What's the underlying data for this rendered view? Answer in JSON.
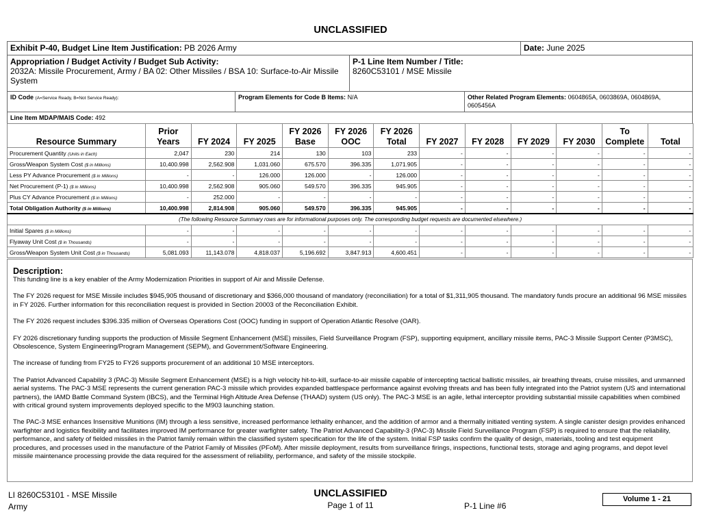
{
  "header": {
    "classification": "UNCLASSIFIED",
    "exhibit": {
      "label": "Exhibit P-40, Budget Line Item Justification:",
      "value": "PB 2026 Army"
    },
    "date": {
      "label": "Date:",
      "value": "June 2025"
    },
    "appropriation": {
      "label": "Appropriation / Budget Activity / Budget Sub Activity:",
      "value": "2032A: Missile Procurement, Army / BA 02: Other Missiles / BSA 10: Surface-to-Air Missile System"
    },
    "p1": {
      "label": "P-1 Line Item Number / Title:",
      "value": "8260C53101 / MSE Missile"
    },
    "id_code": {
      "label": "ID Code",
      "note": "(A=Service Ready, B=Not Service Ready):"
    },
    "program_elements": {
      "label": "Program Elements for Code B Items:",
      "value": "N/A"
    },
    "other_related": {
      "label": "Other Related Program Elements:",
      "value": "0604865A, 0603869A, 0604869A, 0605456A"
    },
    "mdap": {
      "label": "Line Item MDAP/MAIS Code:",
      "value": "492"
    }
  },
  "table": {
    "columns": [
      "Resource Summary",
      "Prior Years",
      "FY 2024",
      "FY 2025",
      "FY 2026 Base",
      "FY 2026 OOC",
      "FY 2026 Total",
      "FY 2027",
      "FY 2028",
      "FY 2029",
      "FY 2030",
      "To Complete",
      "Total"
    ],
    "rows": [
      {
        "label": "Procurement Quantity",
        "unit": "(Units in Each)",
        "cells": [
          "2,047",
          "230",
          "214",
          "130",
          "103",
          "233",
          "-",
          "-",
          "-",
          "-",
          "-",
          "-"
        ]
      },
      {
        "label": "Gross/Weapon System Cost",
        "unit": "($ in Millions)",
        "cells": [
          "10,400.998",
          "2,562.908",
          "1,031.060",
          "675.570",
          "396.335",
          "1,071.905",
          "-",
          "-",
          "-",
          "-",
          "-",
          "-"
        ]
      },
      {
        "label": "Less PY Advance Procurement",
        "unit": "($ in Millions)",
        "cells": [
          "-",
          "-",
          "126.000",
          "126.000",
          "-",
          "126.000",
          "-",
          "-",
          "-",
          "-",
          "-",
          "-"
        ]
      },
      {
        "label": "Net Procurement (P-1)",
        "unit": "($ in Millions)",
        "cells": [
          "10,400.998",
          "2,562.908",
          "905.060",
          "549.570",
          "396.335",
          "945.905",
          "-",
          "-",
          "-",
          "-",
          "-",
          "-"
        ]
      },
      {
        "label": "Plus CY Advance Procurement",
        "unit": "($ in Millions)",
        "cells": [
          "-",
          "252.000",
          "-",
          "-",
          "-",
          "-",
          "-",
          "-",
          "-",
          "-",
          "-",
          "-"
        ]
      },
      {
        "label": "Total Obligation Authority",
        "unit": "($ in Millions)",
        "bold": true,
        "cells": [
          "10,400.998",
          "2,814.908",
          "905.060",
          "549.570",
          "396.335",
          "945.905",
          "-",
          "-",
          "-",
          "-",
          "-",
          "-"
        ]
      }
    ],
    "note": "(The following Resource Summary rows are for informational purposes only. The corresponding budget requests are documented elsewhere.)",
    "info_rows": [
      {
        "label": "Initial Spares",
        "unit": "($ in Millions)",
        "cells": [
          "-",
          "-",
          "-",
          "-",
          "-",
          "-",
          "-",
          "-",
          "-",
          "-",
          "-",
          "-"
        ]
      },
      {
        "label": "Flyaway Unit Cost",
        "unit": "($ in Thousands)",
        "cells": [
          "-",
          "-",
          "-",
          "-",
          "-",
          "-",
          "-",
          "-",
          "-",
          "-",
          "-",
          "-"
        ]
      },
      {
        "label": "Gross/Weapon System Unit Cost",
        "unit": "($ in Thousands)",
        "cells": [
          "5,081.093",
          "11,143.078",
          "4,818.037",
          "5,196.692",
          "3,847.913",
          "4,600.451",
          "-",
          "-",
          "-",
          "-",
          "-",
          "-"
        ]
      }
    ]
  },
  "description": {
    "title": "Description:",
    "paragraphs": [
      "This funding line is a key enabler of the Army Modernization Priorities in support of Air and Missile Defense.",
      "The FY 2026 request for MSE Missile includes $945,905 thousand of discretionary and $366,000 thousand of mandatory (reconciliation) for a total of $1,311,905 thousand. The mandatory funds procure an additional 96 MSE missiles in FY 2026. Further information for this reconciliation request is provided in Section 20003 of the Reconciliation Exhibit.",
      "The FY 2026 request includes $396.335 million of Overseas Operations Cost (OOC) funding in support of Operation Atlantic Resolve (OAR).",
      "FY 2026 discretionary funding supports the production of Missile Segment Enhancement (MSE) missiles, Field Surveillance Program (FSP), supporting equipment, ancillary missile items, PAC-3 Missile Support Center (P3MSC), Obsolescence, System Engineering/Program Management (SEPM), and Government/Software Engineering.",
      "The increase of funding from FY25 to FY26 supports procurement of an additional 10 MSE interceptors.",
      "The Patriot Advanced Capability 3 (PAC-3) Missile Segment Enhancement (MSE) is a high velocity hit-to-kill, surface-to-air missile capable of intercepting tactical ballistic missiles, air breathing threats, cruise missiles, and unmanned aerial systems. The PAC-3 MSE represents the current generation PAC-3 missile which provides expanded battlespace performance against evolving threats and has been fully integrated into the Patriot system (US and international partners), the IAMD Battle Command System (IBCS), and the Terminal High Altitude Area Defense (THAAD) system (US only). The PAC-3 MSE is an agile, lethal interceptor providing substantial missile capabilities when combined with critical ground system improvements deployed specific to the M903 launching station.",
      "The PAC-3 MSE enhances Insensitive Munitions (IM) through a less sensitive, increased performance lethality enhancer, and the addition of armor and a thermally initiated venting system. A single canister design provides enhanced warfighter and logistics flexibility and facilitates improved IM performance for greater warfighter safety. The Patriot Advanced Capability-3 (PAC-3) Missile Field Surveillance Program (FSP) is required to ensure that the reliability, performance, and safety of fielded missiles in the Patriot family remain within the classified system specification for the life of the system. Initial FSP tasks confirm the quality of design, materials, tooling and test equipment procedures, and processes used in the manufacture of the Patriot Family of Missiles (PFoM). After missile deployment, results from surveillance firings, inspections, functional tests, storage and aging programs, and depot level missile maintenance processing provide the data required for the assessment of reliability, performance, and safety of the missile stockpile."
    ]
  },
  "footer": {
    "line_item": "LI 8260C53101 - MSE Missile",
    "organization": "Army",
    "classification": "UNCLASSIFIED",
    "page": "Page 1 of 11",
    "p1_line": "P-1 Line #6",
    "volume": "Volume 1 - 21"
  }
}
